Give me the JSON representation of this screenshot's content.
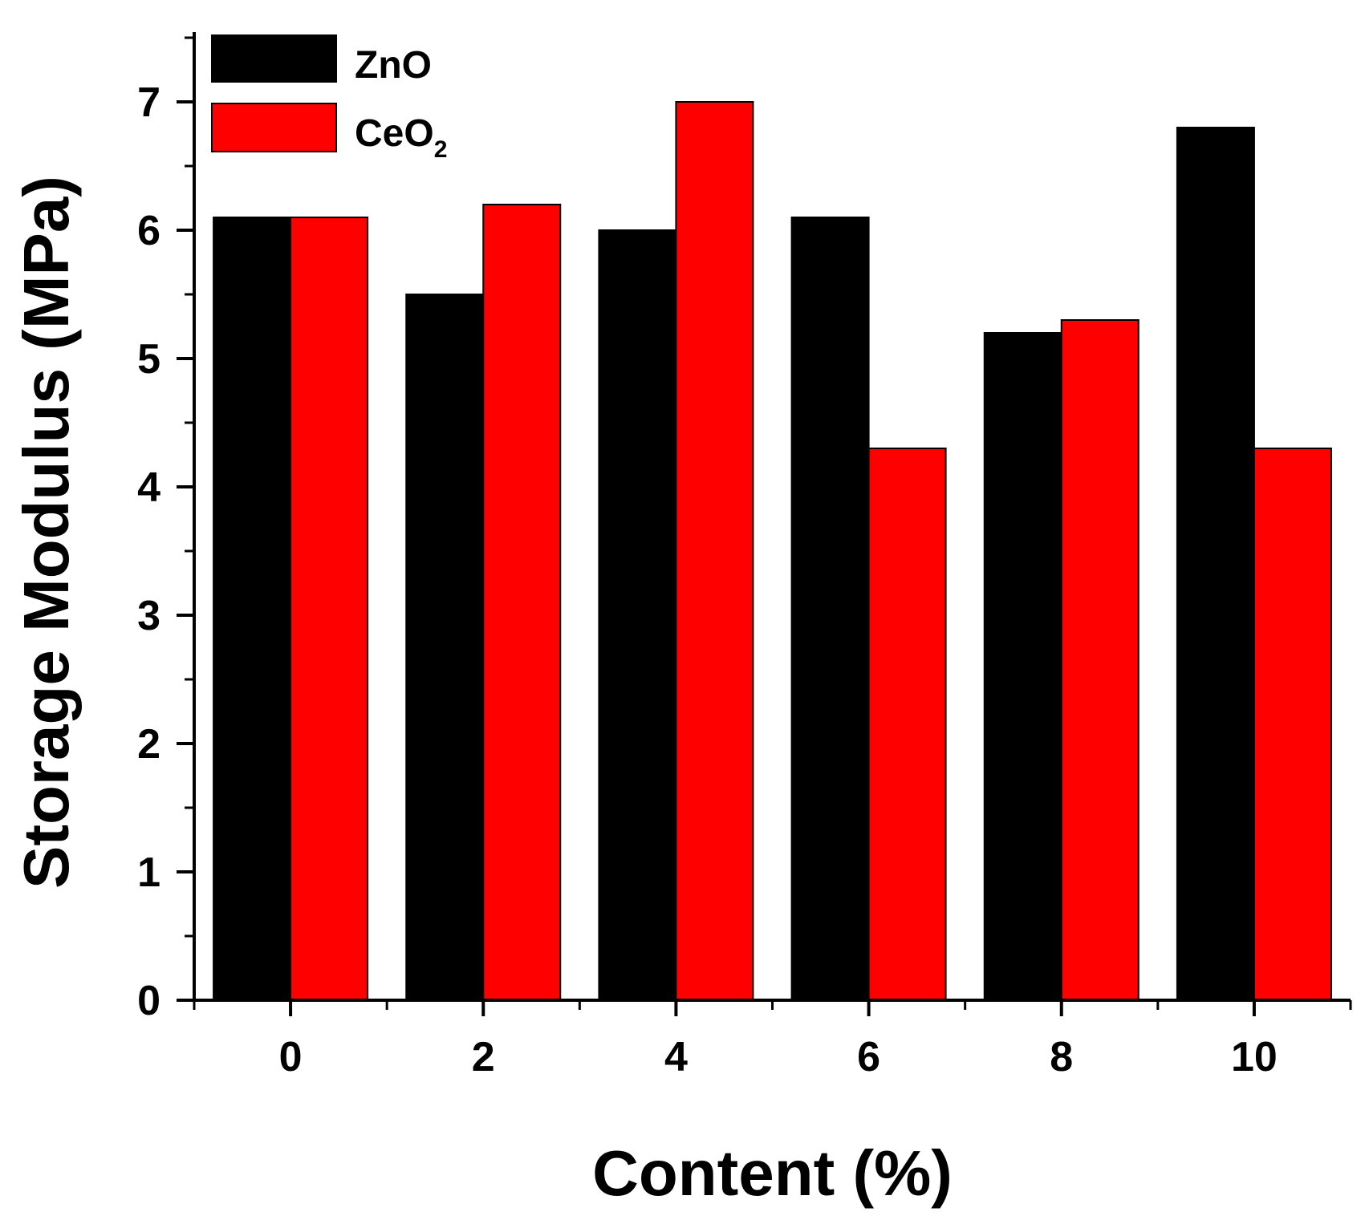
{
  "chart_data": {
    "type": "bar",
    "title": "",
    "xlabel": "Content (%)",
    "ylabel": "Storage Modulus (MPa)",
    "categories": [
      "0",
      "2",
      "4",
      "6",
      "8",
      "10"
    ],
    "series": [
      {
        "name": "ZnO",
        "values": [
          6.1,
          5.5,
          6.0,
          6.1,
          5.2,
          6.8
        ],
        "color": "#000000"
      },
      {
        "name": "CeO",
        "name_subscript": "2",
        "values": [
          6.1,
          6.2,
          7.0,
          4.3,
          5.3,
          4.3
        ],
        "color": "#ff0000"
      }
    ],
    "ylim": [
      0,
      7.5
    ],
    "yticks": [
      "0",
      "1",
      "2",
      "3",
      "4",
      "5",
      "6",
      "7"
    ],
    "grid": false,
    "legend": "top-left"
  }
}
